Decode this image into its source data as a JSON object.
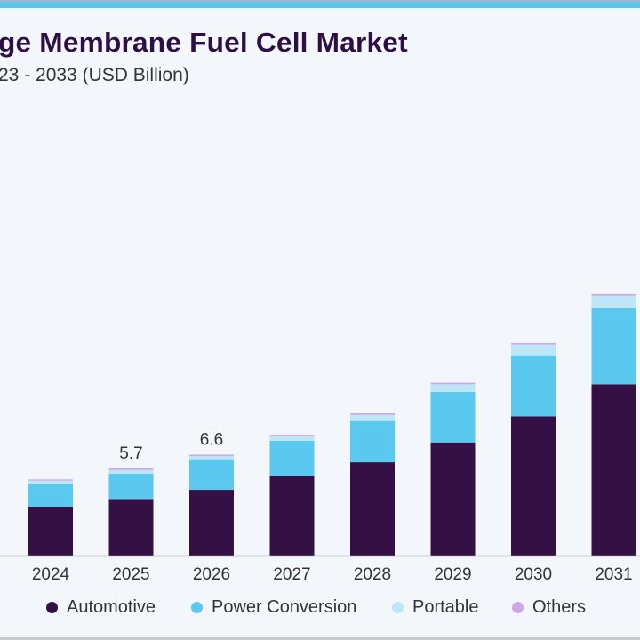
{
  "title": "ge Membrane Fuel Cell Market",
  "subtitle": "23 - 2033 (USD Billion)",
  "colors": {
    "Automotive": "#341044",
    "Power Conversion": "#5bc8f0",
    "Portable": "#bfe6f7",
    "Others": "#cca8e6"
  },
  "chart_data": {
    "type": "bar",
    "stacked": true,
    "title": "ge Membrane Fuel Cell Market",
    "subtitle": "23 - 2033 (USD Billion)",
    "xlabel": "",
    "ylabel": "",
    "ylim": [
      0,
      18
    ],
    "grid": false,
    "legend_position": "bottom",
    "categories": [
      "2024",
      "2025",
      "2026",
      "2027",
      "2028",
      "2029",
      "2030",
      "2031"
    ],
    "series": [
      {
        "name": "Automotive",
        "values": [
          3.2,
          3.7,
          4.3,
          5.2,
          6.1,
          7.4,
          9.1,
          11.2
        ]
      },
      {
        "name": "Power Conversion",
        "values": [
          1.5,
          1.65,
          2.0,
          2.3,
          2.7,
          3.3,
          4.0,
          5.0
        ]
      },
      {
        "name": "Portable",
        "values": [
          0.2,
          0.25,
          0.2,
          0.3,
          0.4,
          0.5,
          0.7,
          0.8
        ]
      },
      {
        "name": "Others",
        "values": [
          0.08,
          0.1,
          0.1,
          0.1,
          0.1,
          0.1,
          0.1,
          0.1
        ]
      }
    ],
    "data_labels": [
      {
        "category": "2025",
        "text": "5.7"
      },
      {
        "category": "2026",
        "text": "6.6"
      }
    ]
  },
  "legend": [
    {
      "label": "Automotive"
    },
    {
      "label": "Power Conversion"
    },
    {
      "label": "Portable"
    },
    {
      "label": "Others"
    }
  ]
}
